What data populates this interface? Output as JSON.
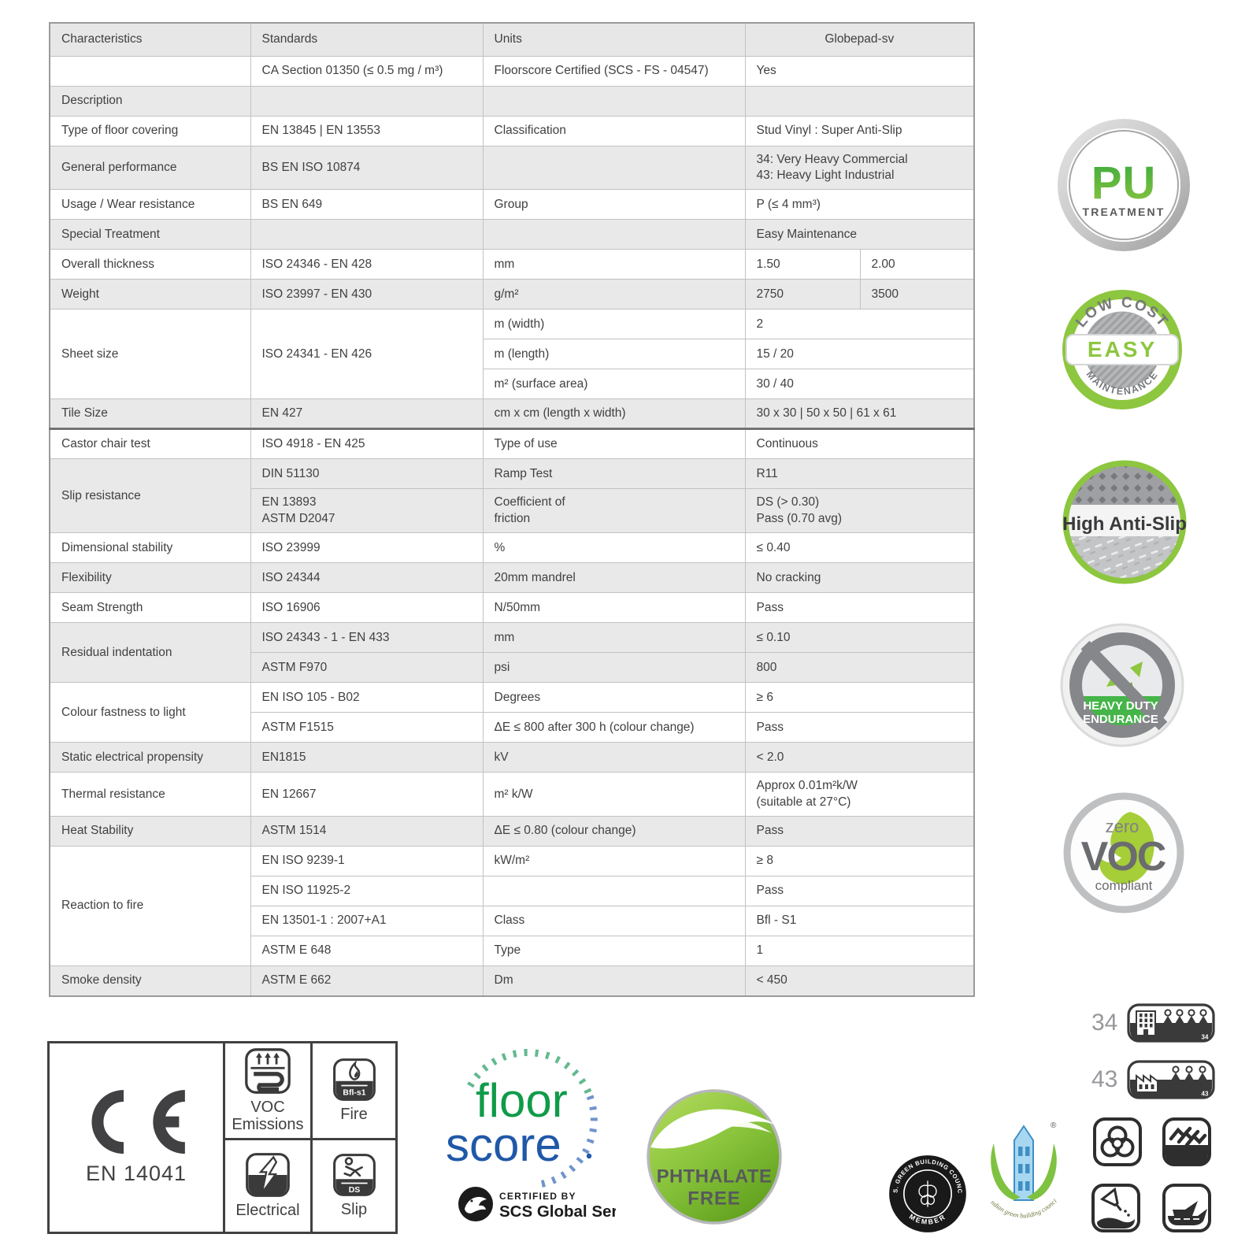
{
  "table": {
    "header": {
      "characteristics": "Characteristics",
      "standards": "Standards",
      "units": "Units",
      "product": "Globepad-sv"
    },
    "rows": [
      {
        "c": "",
        "s": "CA Section 01350 (≤ 0.5 mg / m³)",
        "u": "Floorscore Certified (SCS - FS - 04547)",
        "v": "Yes",
        "shade": false
      },
      {
        "c": "Description",
        "s": "",
        "u": "",
        "v": "",
        "shade": true
      },
      {
        "c": "Type of floor covering",
        "s": "EN 13845 | EN 13553",
        "u": "Classification",
        "v": "Stud Vinyl : Super Anti-Slip",
        "shade": false
      },
      {
        "c": "General performance",
        "s": "BS EN ISO 10874",
        "u": "",
        "v": "34: Very Heavy Commercial\n43: Heavy Light Industrial",
        "shade": true
      },
      {
        "c": "Usage / Wear resistance",
        "s": "BS EN 649",
        "u": "Group",
        "v": "P (≤ 4 mm³)",
        "shade": false
      },
      {
        "c": "Special Treatment",
        "s": "",
        "u": "",
        "v": "Easy Maintenance",
        "shade": true
      },
      {
        "c": "Overall thickness",
        "s": "ISO 24346 - EN 428",
        "u": "mm",
        "v": "1.50",
        "v2": "2.00",
        "shade": false
      },
      {
        "c": "Weight",
        "s": "ISO 23997 - EN 430",
        "u": "g/m²",
        "v": "2750",
        "v2": "3500",
        "shade": true
      },
      {
        "c": "Sheet size",
        "cspan": 3,
        "s": "ISO 24341 - EN 426",
        "sspan": 3,
        "u": "m (width)",
        "v": "2",
        "shade": false
      },
      {
        "u": "m (length)",
        "v": "15 / 20",
        "shade": false
      },
      {
        "u": "m² (surface area)",
        "v": "30 / 40",
        "shade": false
      },
      {
        "c": "Tile Size",
        "s": "EN 427",
        "u": "cm x cm (length x width)",
        "v": "30 x 30 | 50 x 50 | 61 x 61",
        "shade": true,
        "thick": true
      },
      {
        "c": "Castor chair test",
        "s": "ISO 4918 - EN 425",
        "u": "Type of use",
        "v": "Continuous",
        "shade": false
      },
      {
        "c": "Slip resistance",
        "cspan": 2,
        "s": "DIN 51130",
        "u": "Ramp Test",
        "v": "R11",
        "shade": true
      },
      {
        "s": "EN 13893\nASTM D2047",
        "u": "Coefficient of\nfriction",
        "v": "DS (> 0.30)\nPass (0.70 avg)",
        "shade": true
      },
      {
        "c": "Dimensional stability",
        "s": "ISO 23999",
        "u": "%",
        "v": "≤ 0.40",
        "shade": false
      },
      {
        "c": "Flexibility",
        "s": "ISO 24344",
        "u": "20mm mandrel",
        "v": "No cracking",
        "shade": true
      },
      {
        "c": "Seam Strength",
        "s": "ISO 16906",
        "u": "N/50mm",
        "v": "Pass",
        "shade": false
      },
      {
        "c": "Residual indentation",
        "cspan": 2,
        "s": "ISO 24343 - 1 - EN 433",
        "u": "mm",
        "v": "≤ 0.10",
        "shade": true
      },
      {
        "s": "ASTM F970",
        "u": "psi",
        "v": "800",
        "shade": true
      },
      {
        "c": "Colour fastness to light",
        "cspan": 2,
        "s": "EN ISO 105 - B02",
        "u": "Degrees",
        "v": "≥ 6",
        "shade": false
      },
      {
        "s": "ASTM F1515",
        "u": "ΔE ≤ 800 after 300 h (colour change)",
        "v": "Pass",
        "shade": false
      },
      {
        "c": "Static electrical propensity",
        "s": "EN1815",
        "u": "kV",
        "v": "< 2.0",
        "shade": true
      },
      {
        "c": "Thermal resistance",
        "s": "EN 12667",
        "u": "m² k/W",
        "v": "Approx 0.01m²k/W\n(suitable at 27°C)",
        "shade": false
      },
      {
        "c": "Heat Stability",
        "s": "ASTM 1514",
        "u": "ΔE ≤ 0.80 (colour change)",
        "v": "Pass",
        "shade": true
      },
      {
        "c": "Reaction to fire",
        "cspan": 4,
        "s": "EN ISO 9239-1",
        "u": "kW/m²",
        "v": "≥ 8",
        "shade": false
      },
      {
        "s": "EN ISO 11925-2",
        "u": "",
        "v": "Pass",
        "shade": false
      },
      {
        "s": "EN 13501-1 : 2007+A1",
        "u": "Class",
        "v": "Bfl - S1",
        "shade": false
      },
      {
        "s": "ASTM E 648",
        "u": "Type",
        "v": "1",
        "shade": false
      },
      {
        "c": "Smoke density",
        "s": "ASTM E 662",
        "u": "Dm",
        "v": "< 450",
        "shade": true
      }
    ]
  },
  "side_badges": {
    "pu": {
      "title": "PU",
      "subtitle": "TREATMENT"
    },
    "easy": {
      "top": "LOW COST",
      "center": "EASY",
      "bottom": "MAINTENANCE"
    },
    "anti_slip": {
      "label": "High Anti-Slip"
    },
    "heavy_duty": {
      "line1": "HEAVY DUTY",
      "line2": "ENDURANCE"
    },
    "zero_voc": {
      "top": "zero",
      "center": "VOC",
      "bottom": "compliant"
    }
  },
  "bottom": {
    "ce": {
      "standard": "EN 14041"
    },
    "cert_cells": [
      {
        "label": "VOC\nEmissions"
      },
      {
        "label": "Fire",
        "badge": "Bfl-s1"
      },
      {
        "label": "Electrical"
      },
      {
        "label": "Slip",
        "badge": "DS"
      }
    ],
    "floorscore": {
      "word1": "floor",
      "word2": "score",
      "certified_by": "CERTIFIED BY",
      "org": "SCS Global Services"
    },
    "phthalate": {
      "line1": "PHTHALATE",
      "line2": "FREE"
    },
    "usgbc": {
      "arc_text": "U.S. GREEN BUILDING COUNCIL",
      "member": "MEMBER"
    },
    "igbc": {
      "arc_text": "indian green building council",
      "reg": "®"
    },
    "class_badges": [
      {
        "label": "34",
        "tag": "34"
      },
      {
        "label": "43",
        "tag": "43"
      }
    ],
    "pictograms": [
      "biohazard",
      "anti-slip-waves",
      "spill-resistant",
      "marine-ship"
    ]
  },
  "colors": {
    "accent_green": "#8dc63f",
    "badge_gray": "#808285",
    "table_shade": "#e9e9e9",
    "border_gray": "#c2c2c2",
    "text": "#414042",
    "floorscore_green": "#0f9b49",
    "floorscore_blue": "#2058a8",
    "heavy_duty_green": "#45b549",
    "igbc_blue": "#a8d7f2",
    "dark": "#3a3a3a"
  }
}
